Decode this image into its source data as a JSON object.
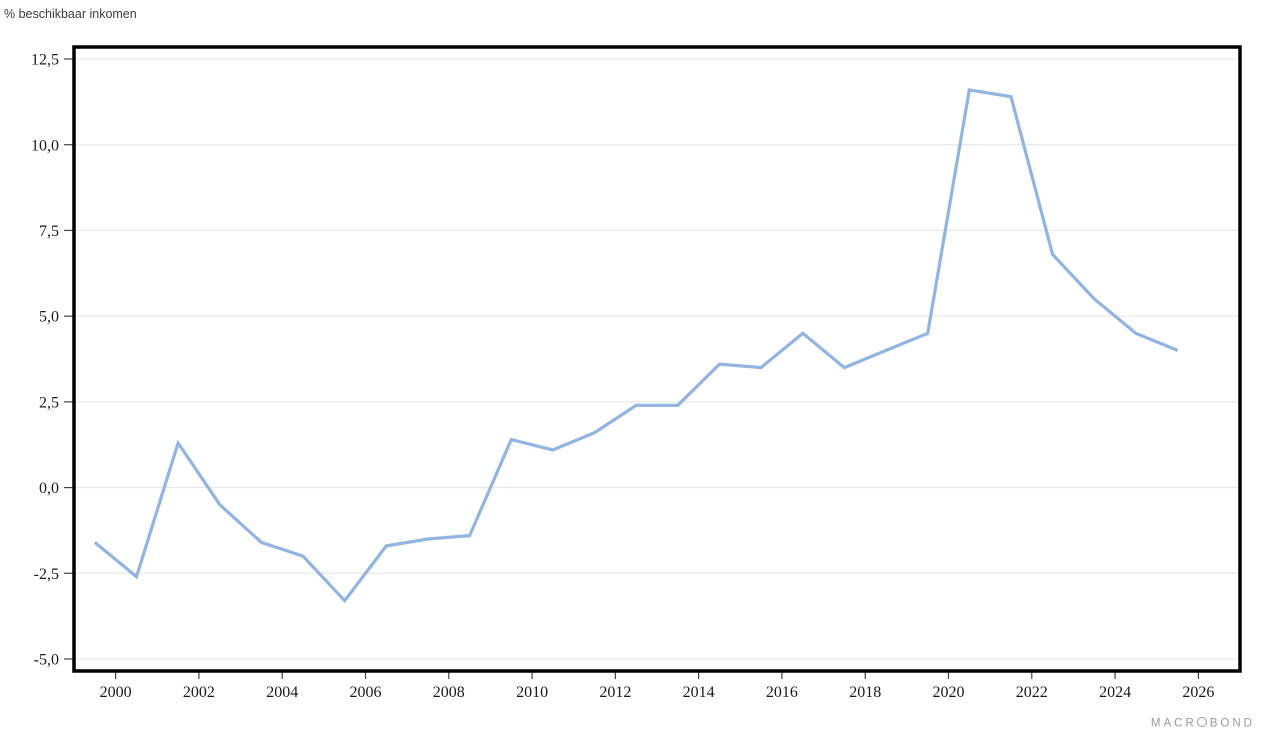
{
  "chart_data": {
    "type": "line",
    "title": "% beschikbaar inkomen",
    "ylabel": "% beschikbaar inkomen",
    "xlabel": "",
    "legend": "none",
    "grid": true,
    "line_color": "#91B4E1",
    "frame_color": "#000000",
    "gridline_color": "#e3e3e3",
    "xlim": [
      1999,
      2027
    ],
    "ylim": [
      -5.35,
      12.85
    ],
    "x_ticks": [
      2000,
      2002,
      2004,
      2006,
      2008,
      2010,
      2012,
      2014,
      2016,
      2018,
      2020,
      2022,
      2024,
      2026
    ],
    "x_tick_labels": [
      "2000",
      "2002",
      "2004",
      "2006",
      "2008",
      "2010",
      "2012",
      "2014",
      "2016",
      "2018",
      "2020",
      "2022",
      "2024",
      "2026"
    ],
    "y_ticks": [
      12.5,
      10,
      7.5,
      5,
      2.5,
      0,
      -2.5,
      -5
    ],
    "y_tick_labels": [
      "12,5",
      "10,0",
      "7,5",
      "5,0",
      "2,5",
      "0,0",
      "-2,5",
      "-5,0"
    ],
    "x": [
      1999.5,
      2000.5,
      2001.5,
      2002.5,
      2003.5,
      2004.5,
      2005.5,
      2006.5,
      2007.5,
      2008.5,
      2009.5,
      2010.5,
      2011.5,
      2012.5,
      2013.5,
      2014.5,
      2015.5,
      2016.5,
      2017.5,
      2018.5,
      2019.5,
      2020.5,
      2021.5,
      2022.5,
      2023.5,
      2024.5,
      2025.5
    ],
    "values": [
      -1.6,
      -2.6,
      1.3,
      -0.5,
      -1.6,
      -2.0,
      -3.3,
      -1.7,
      -1.5,
      -1.4,
      1.4,
      1.1,
      1.6,
      2.4,
      2.4,
      3.6,
      3.5,
      4.5,
      3.5,
      4.0,
      4.5,
      11.6,
      11.4,
      6.8,
      5.5,
      4.5,
      4.0
    ]
  },
  "watermark": {
    "prefix": "MACR",
    "suffix": "BOND"
  }
}
